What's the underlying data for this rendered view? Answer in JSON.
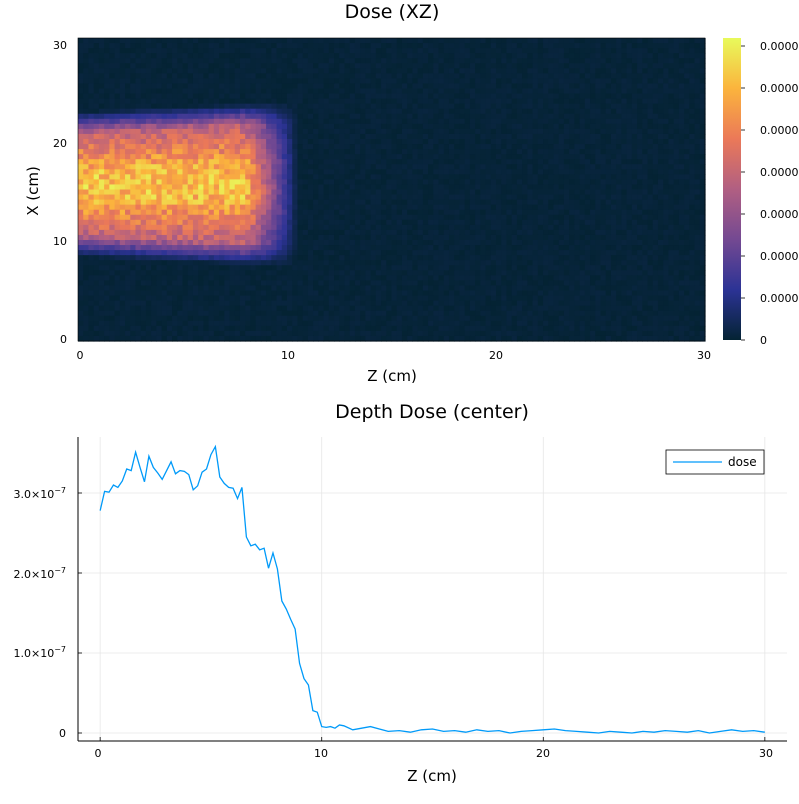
{
  "chart_data": [
    {
      "type": "heatmap",
      "title": "Dose (XZ)",
      "xlabel": "Z (cm)",
      "ylabel": "X (cm)",
      "xlim": [
        0,
        30
      ],
      "ylim": [
        0,
        30
      ],
      "xticks": [
        "0",
        "10",
        "20",
        "30"
      ],
      "yticks": [
        "0",
        "10",
        "20",
        "30"
      ],
      "colormap": "thermal",
      "colorbar_ticks": [
        "0",
        "0.00000",
        "0.00000",
        "0.00000",
        "0.00000",
        "0.00000",
        "0.00000",
        "0.00000"
      ],
      "colorbar_colors": [
        "#042333",
        "#2c3395",
        "#744992",
        "#b15f82",
        "#eb7958",
        "#fbb43d",
        "#e8fa5b"
      ],
      "beam": {
        "x_center": 15.5,
        "x_halfwidth_entry": 6.0,
        "x_halfwidth_exit": 7.0,
        "z_end": 10,
        "peak_fraction": 0.9,
        "background_fraction": 0.02
      },
      "grid": false
    },
    {
      "type": "line",
      "title": "Depth Dose (center)",
      "xlabel": "Z (cm)",
      "ylabel": "",
      "xlim": [
        -1,
        31
      ],
      "ylim": [
        -1e-08,
        3.7e-07
      ],
      "xticks": [
        "0",
        "10",
        "20",
        "30"
      ],
      "yticks": [
        {
          "base": "0",
          "exp": ""
        },
        {
          "base": "1.0×10",
          "exp": "−7"
        },
        {
          "base": "2.0×10",
          "exp": "−7"
        },
        {
          "base": "3.0×10",
          "exp": "−7"
        }
      ],
      "legend_position": "top-right",
      "grid": true,
      "series": [
        {
          "name": "dose",
          "color": "#009af9",
          "x": [
            0.0,
            0.2,
            0.4,
            0.6,
            0.8,
            1.0,
            1.2,
            1.4,
            1.6,
            1.8,
            2.0,
            2.2,
            2.4,
            2.6,
            2.8,
            3.0,
            3.2,
            3.4,
            3.6,
            3.8,
            4.0,
            4.2,
            4.4,
            4.6,
            4.8,
            5.0,
            5.2,
            5.4,
            5.6,
            5.8,
            6.0,
            6.2,
            6.4,
            6.6,
            6.8,
            7.0,
            7.2,
            7.4,
            7.6,
            7.8,
            8.0,
            8.2,
            8.4,
            8.6,
            8.8,
            9.0,
            9.2,
            9.4,
            9.6,
            9.8,
            10.0,
            10.2,
            10.4,
            10.6,
            10.8,
            11.0,
            11.4,
            11.8,
            12.2,
            12.6,
            13.0,
            13.5,
            14.0,
            14.5,
            15.0,
            15.5,
            16.0,
            16.5,
            17.0,
            17.5,
            18.0,
            18.5,
            19.0,
            19.5,
            20.0,
            20.5,
            21.0,
            21.5,
            22.0,
            22.5,
            23.0,
            23.5,
            24.0,
            24.5,
            25.0,
            25.5,
            26.0,
            26.5,
            27.0,
            27.5,
            28.0,
            28.5,
            29.0,
            29.5,
            30.0
          ],
          "y": [
            2.78e-07,
            3.02e-07,
            3.01e-07,
            3.1e-07,
            3.07e-07,
            3.15e-07,
            3.3e-07,
            3.28e-07,
            3.51e-07,
            3.32e-07,
            3.14e-07,
            3.46e-07,
            3.32e-07,
            3.25e-07,
            3.17e-07,
            3.28e-07,
            3.39e-07,
            3.24e-07,
            3.28e-07,
            3.27e-07,
            3.23e-07,
            3.04e-07,
            3.09e-07,
            3.26e-07,
            3.3e-07,
            3.48e-07,
            3.58e-07,
            3.2e-07,
            3.12e-07,
            3.07e-07,
            3.06e-07,
            2.93e-07,
            3.07e-07,
            2.45e-07,
            2.34e-07,
            2.36e-07,
            2.29e-07,
            2.31e-07,
            2.06e-07,
            2.25e-07,
            2.05e-07,
            1.65e-07,
            1.55e-07,
            1.42e-07,
            1.3e-07,
            8.7e-08,
            6.8e-08,
            6e-08,
            2.8e-08,
            2.6e-08,
            8e-09,
            7e-09,
            8e-09,
            6e-09,
            1e-08,
            9e-09,
            4e-09,
            6e-09,
            8e-09,
            5e-09,
            2e-09,
            3e-09,
            1e-09,
            4e-09,
            5e-09,
            2e-09,
            3e-09,
            1e-09,
            4e-09,
            2e-09,
            3e-09,
            0.0,
            2e-09,
            3e-09,
            4e-09,
            5e-09,
            3e-09,
            2e-09,
            1e-09,
            0.0,
            2e-09,
            1e-09,
            0.0,
            2e-09,
            1e-09,
            3e-09,
            2e-09,
            1e-09,
            3e-09,
            0.0,
            2e-09,
            4e-09,
            2e-09,
            3e-09,
            1e-09
          ]
        }
      ]
    }
  ]
}
